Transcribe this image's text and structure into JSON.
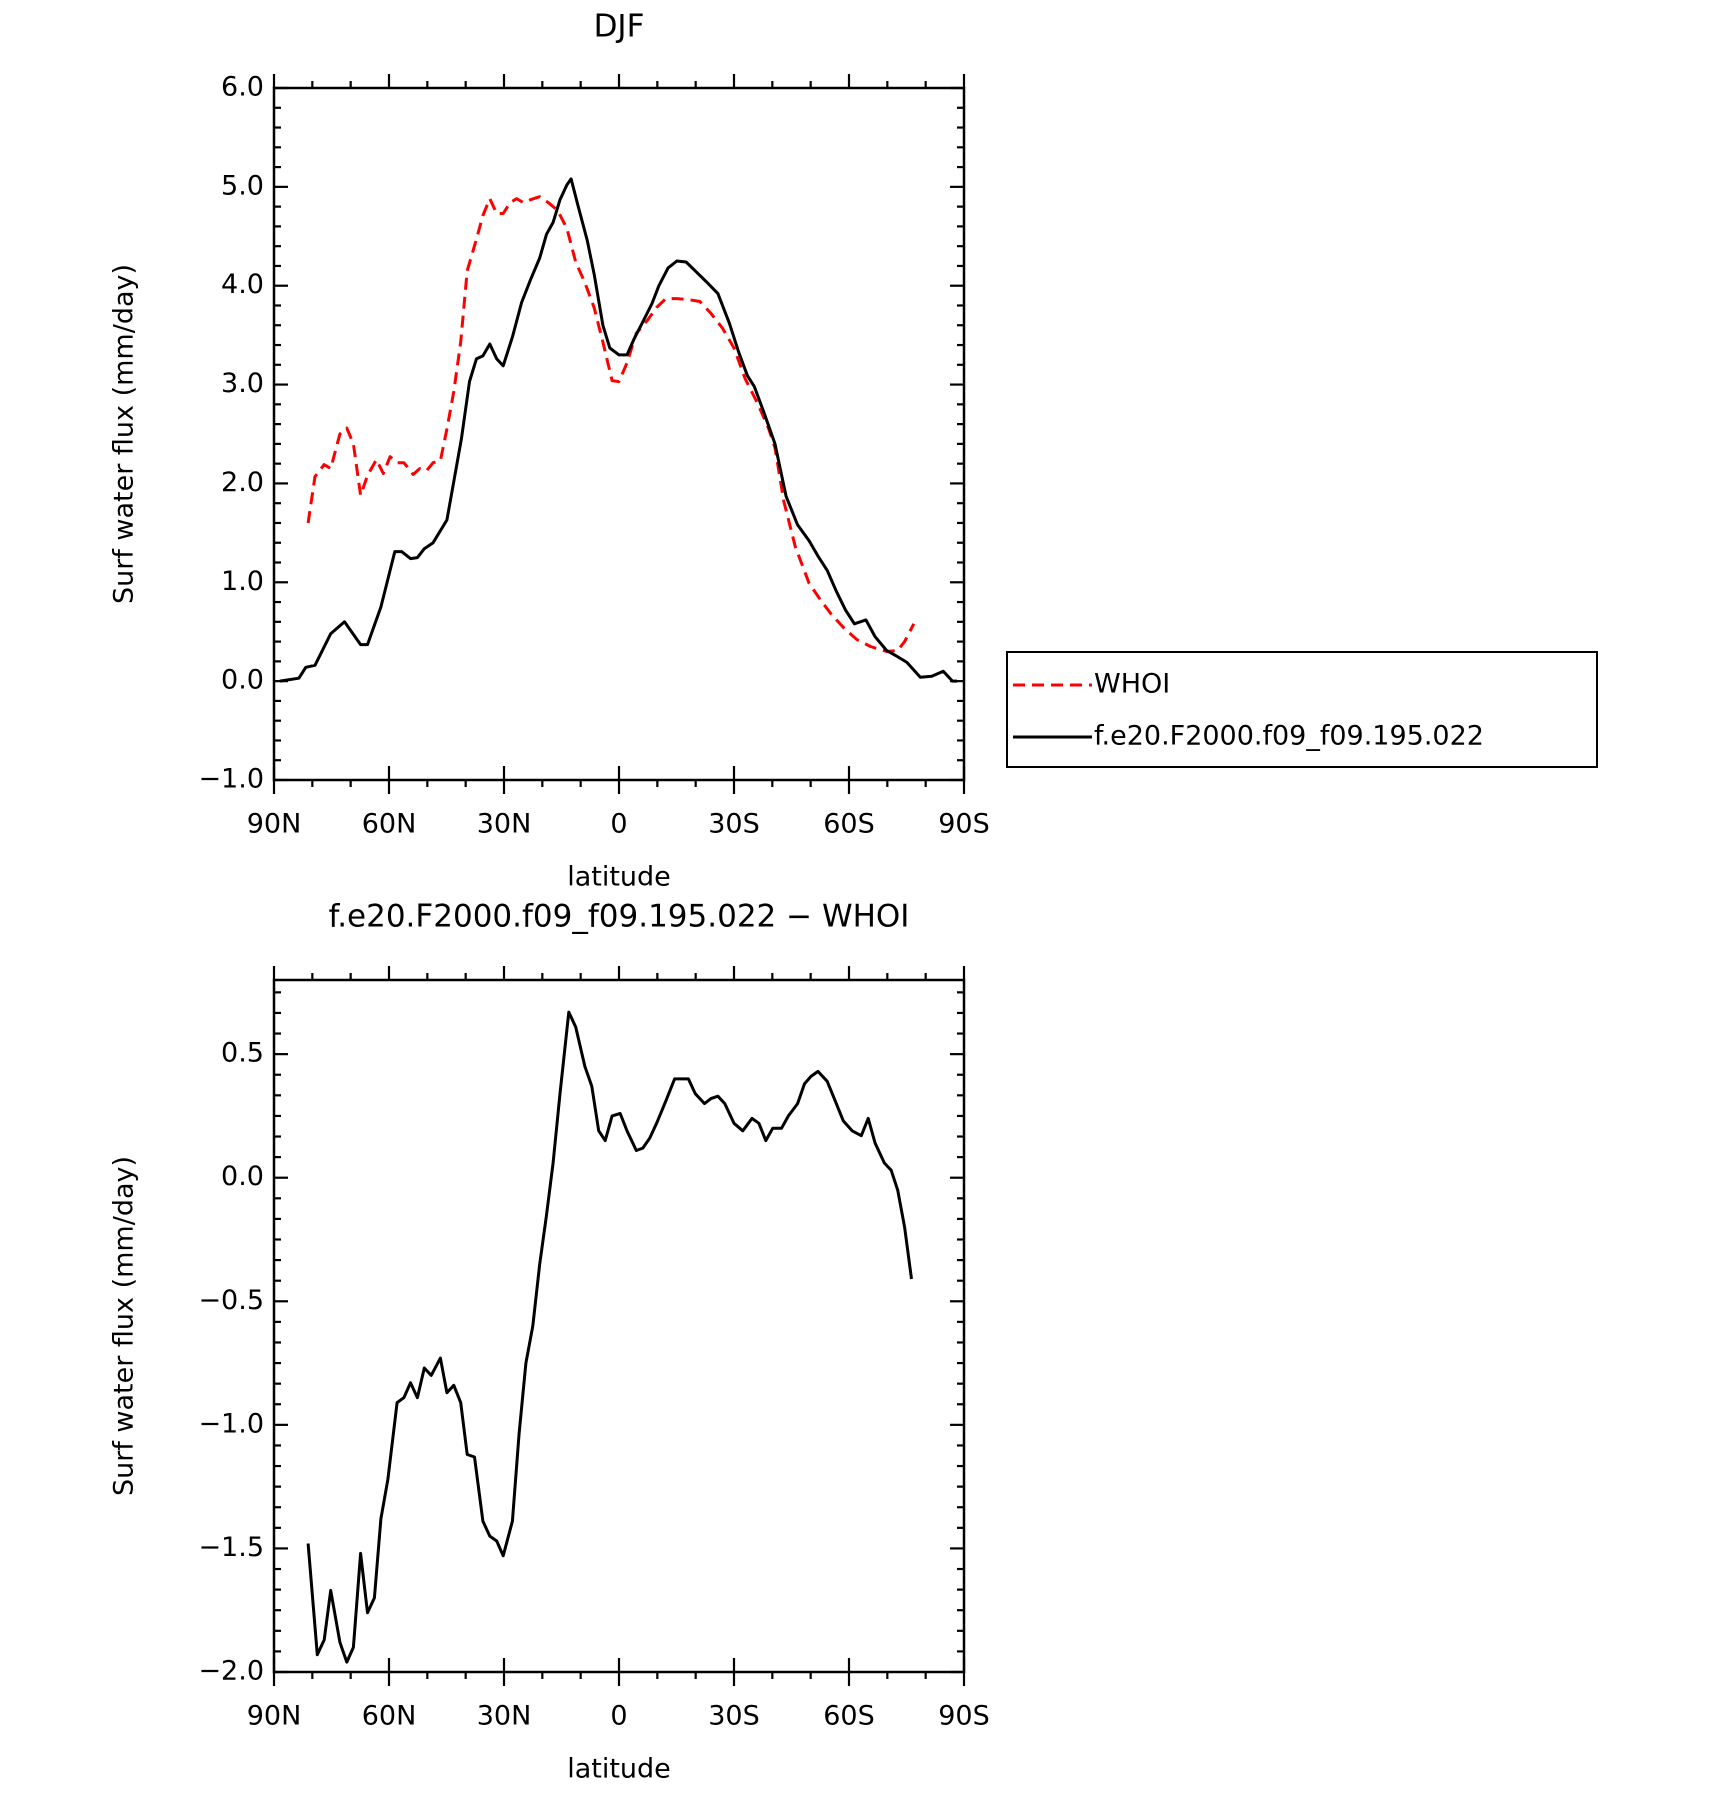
{
  "chart_data": [
    {
      "type": "line",
      "title": "DJF",
      "xlabel": "latitude",
      "ylabel": "Surf water flux (mm/day)",
      "xlim": [
        90,
        -90
      ],
      "xticks": [
        {
          "value": 90,
          "label": "90N"
        },
        {
          "value": 60,
          "label": "60N"
        },
        {
          "value": 30,
          "label": "30N"
        },
        0,
        {
          "value": -30,
          "label": "30S"
        },
        {
          "value": -60,
          "label": "60S"
        },
        {
          "value": -90,
          "label": "90S"
        }
      ],
      "ylim": [
        -1.0,
        6.0
      ],
      "yticks": [
        {
          "value": -1,
          "label": "−1.0"
        },
        {
          "value": 0,
          "label": "0.0"
        },
        {
          "value": 1,
          "label": "1.0"
        },
        {
          "value": 2,
          "label": "2.0"
        },
        {
          "value": 3,
          "label": "3.0"
        },
        {
          "value": 4,
          "label": "4.0"
        },
        {
          "value": 5,
          "label": "5.0"
        },
        {
          "value": 6,
          "label": "6.0"
        }
      ],
      "legend": "right",
      "series": [
        {
          "name": "WHOI",
          "color": "#ff0000",
          "dashed": true,
          "x": [
            81.1,
            79.3,
            76.9,
            75.2,
            72.8,
            71.0,
            69.3,
            67.4,
            65.6,
            63.3,
            61.5,
            59.7,
            57.9,
            56.1,
            53.7,
            52.0,
            50.2,
            48.5,
            46.6,
            44.9,
            43.1,
            41.3,
            39.6,
            37.2,
            35.5,
            33.7,
            31.9,
            30.2,
            28.4,
            26.7,
            24.9,
            23.1,
            20.7,
            18.4,
            16.0,
            13.6,
            11.3,
            8.9,
            6.5,
            4.2,
            1.8,
            0,
            -2.1,
            -4.5,
            -7.4,
            -9.8,
            -12.2,
            -15.1,
            -18.1,
            -21.1,
            -24.0,
            -27.0,
            -30.0,
            -32.9,
            -35.9,
            -38.9,
            -40.7,
            -43.0,
            -46.0,
            -49.6,
            -52.6,
            -55.5,
            -59.1,
            -62.1,
            -65.6,
            -69.8,
            -72.7,
            -74.5,
            -76.9
          ],
          "values": [
            1.6,
            2.07,
            2.19,
            2.15,
            2.5,
            2.56,
            2.4,
            1.88,
            2.08,
            2.24,
            2.1,
            2.27,
            2.21,
            2.21,
            2.09,
            2.15,
            2.13,
            2.21,
            2.23,
            2.55,
            2.93,
            3.43,
            4.15,
            4.47,
            4.71,
            4.88,
            4.73,
            4.73,
            4.84,
            4.88,
            4.84,
            4.87,
            4.9,
            4.84,
            4.76,
            4.58,
            4.24,
            4.03,
            3.78,
            3.43,
            3.04,
            3.03,
            3.22,
            3.52,
            3.65,
            3.78,
            3.87,
            3.87,
            3.86,
            3.84,
            3.72,
            3.57,
            3.37,
            3.06,
            2.83,
            2.57,
            2.36,
            1.82,
            1.36,
            0.99,
            0.82,
            0.67,
            0.52,
            0.42,
            0.35,
            0.3,
            0.31,
            0.4,
            0.58
          ]
        },
        {
          "name": "f.e20.F2000.f09_f09.195.022",
          "color": "#000000",
          "dashed": false,
          "x": [
            88.5,
            83.5,
            81.7,
            79.3,
            75.2,
            71.6,
            67.4,
            65.6,
            62.1,
            58.5,
            56.7,
            54.4,
            52.6,
            50.8,
            48.5,
            44.9,
            43.1,
            41.1,
            39.0,
            37.2,
            35.5,
            33.7,
            31.9,
            30.2,
            27.8,
            25.4,
            23.1,
            20.7,
            18.9,
            17.2,
            15.4,
            13.6,
            12.5,
            10.7,
            8.3,
            6.5,
            4.2,
            2.4,
            0,
            -2.1,
            -3.9,
            -6.8,
            -8.6,
            -10.4,
            -12.8,
            -15.1,
            -17.5,
            -19.9,
            -22.8,
            -25.8,
            -28.8,
            -31.2,
            -33.5,
            -35.3,
            -37.7,
            -40.7,
            -43.6,
            -46.6,
            -49.6,
            -52.0,
            -54.3,
            -56.7,
            -59.1,
            -61.4,
            -64.4,
            -66.8,
            -69.8,
            -72.1,
            -75.1,
            -78.6,
            -81.6,
            -84.6,
            -87.0,
            -88.2
          ],
          "values": [
            0.0,
            0.03,
            0.14,
            0.16,
            0.48,
            0.6,
            0.37,
            0.37,
            0.75,
            1.31,
            1.31,
            1.24,
            1.25,
            1.34,
            1.4,
            1.63,
            2.02,
            2.45,
            3.03,
            3.26,
            3.29,
            3.41,
            3.26,
            3.19,
            3.48,
            3.83,
            4.06,
            4.28,
            4.52,
            4.64,
            4.87,
            5.02,
            5.08,
            4.81,
            4.46,
            4.12,
            3.6,
            3.37,
            3.3,
            3.3,
            3.46,
            3.68,
            3.82,
            4.0,
            4.18,
            4.25,
            4.24,
            4.15,
            4.04,
            3.92,
            3.62,
            3.33,
            3.09,
            2.98,
            2.73,
            2.4,
            1.87,
            1.58,
            1.42,
            1.26,
            1.12,
            0.91,
            0.72,
            0.58,
            0.62,
            0.45,
            0.31,
            0.26,
            0.19,
            0.04,
            0.05,
            0.1,
            0.0,
            0.0
          ]
        }
      ]
    },
    {
      "type": "line",
      "title": "f.e20.F2000.f09_f09.195.022 − WHOI",
      "xlabel": "latitude",
      "ylabel": "Surf water flux (mm/day)",
      "xlim": [
        90,
        -90
      ],
      "xticks": [
        {
          "value": 90,
          "label": "90N"
        },
        {
          "value": 60,
          "label": "60N"
        },
        {
          "value": 30,
          "label": "30N"
        },
        0,
        {
          "value": -30,
          "label": "30S"
        },
        {
          "value": -60,
          "label": "60S"
        },
        {
          "value": -90,
          "label": "90S"
        }
      ],
      "ylim": [
        -2.0,
        0.8
      ],
      "yticks": [
        {
          "value": -2,
          "label": "−2.0"
        },
        {
          "value": -1.5,
          "label": "−1.5"
        },
        {
          "value": -1,
          "label": "−1.0"
        },
        {
          "value": -0.5,
          "label": "−0.5"
        },
        {
          "value": 0,
          "label": "0.0"
        },
        0.5
      ],
      "series": [
        {
          "color": "#000000",
          "dashed": false,
          "x": [
            81.1,
            78.7,
            76.9,
            75.2,
            72.8,
            71.0,
            69.3,
            67.4,
            65.6,
            63.8,
            62.1,
            60.3,
            57.9,
            56.1,
            54.4,
            52.6,
            50.8,
            49.0,
            46.6,
            44.9,
            43.1,
            41.3,
            39.6,
            37.7,
            35.5,
            33.7,
            31.9,
            30.2,
            27.8,
            26.1,
            24.3,
            22.5,
            20.7,
            19.0,
            17.2,
            15.4,
            13.1,
            11.3,
            8.9,
            7.1,
            5.3,
            3.6,
            1.8,
            -0.3,
            -2.1,
            -4.5,
            -6.2,
            -8.0,
            -9.8,
            -12.2,
            -14.5,
            -16.3,
            -18.1,
            -19.9,
            -22.3,
            -24.0,
            -25.8,
            -27.6,
            -30.0,
            -32.3,
            -34.7,
            -36.5,
            -38.3,
            -40.1,
            -42.4,
            -44.2,
            -46.6,
            -48.4,
            -50.1,
            -51.9,
            -54.3,
            -56.7,
            -58.5,
            -60.8,
            -63.2,
            -65.0,
            -66.8,
            -69.2,
            -71.0,
            -72.7,
            -74.5,
            -76.3
          ],
          "values": [
            -1.48,
            -1.93,
            -1.87,
            -1.67,
            -1.88,
            -1.96,
            -1.9,
            -1.52,
            -1.76,
            -1.7,
            -1.38,
            -1.22,
            -0.91,
            -0.89,
            -0.83,
            -0.89,
            -0.77,
            -0.8,
            -0.73,
            -0.87,
            -0.84,
            -0.91,
            -1.12,
            -1.13,
            -1.39,
            -1.45,
            -1.47,
            -1.53,
            -1.39,
            -1.04,
            -0.75,
            -0.6,
            -0.35,
            -0.16,
            0.06,
            0.34,
            0.67,
            0.61,
            0.45,
            0.37,
            0.19,
            0.15,
            0.25,
            0.26,
            0.19,
            0.11,
            0.12,
            0.16,
            0.22,
            0.31,
            0.4,
            0.4,
            0.4,
            0.34,
            0.3,
            0.32,
            0.33,
            0.3,
            0.22,
            0.19,
            0.24,
            0.22,
            0.15,
            0.2,
            0.2,
            0.25,
            0.3,
            0.38,
            0.41,
            0.43,
            0.39,
            0.3,
            0.23,
            0.19,
            0.17,
            0.24,
            0.14,
            0.06,
            0.03,
            -0.05,
            -0.2,
            -0.41
          ]
        }
      ]
    }
  ]
}
